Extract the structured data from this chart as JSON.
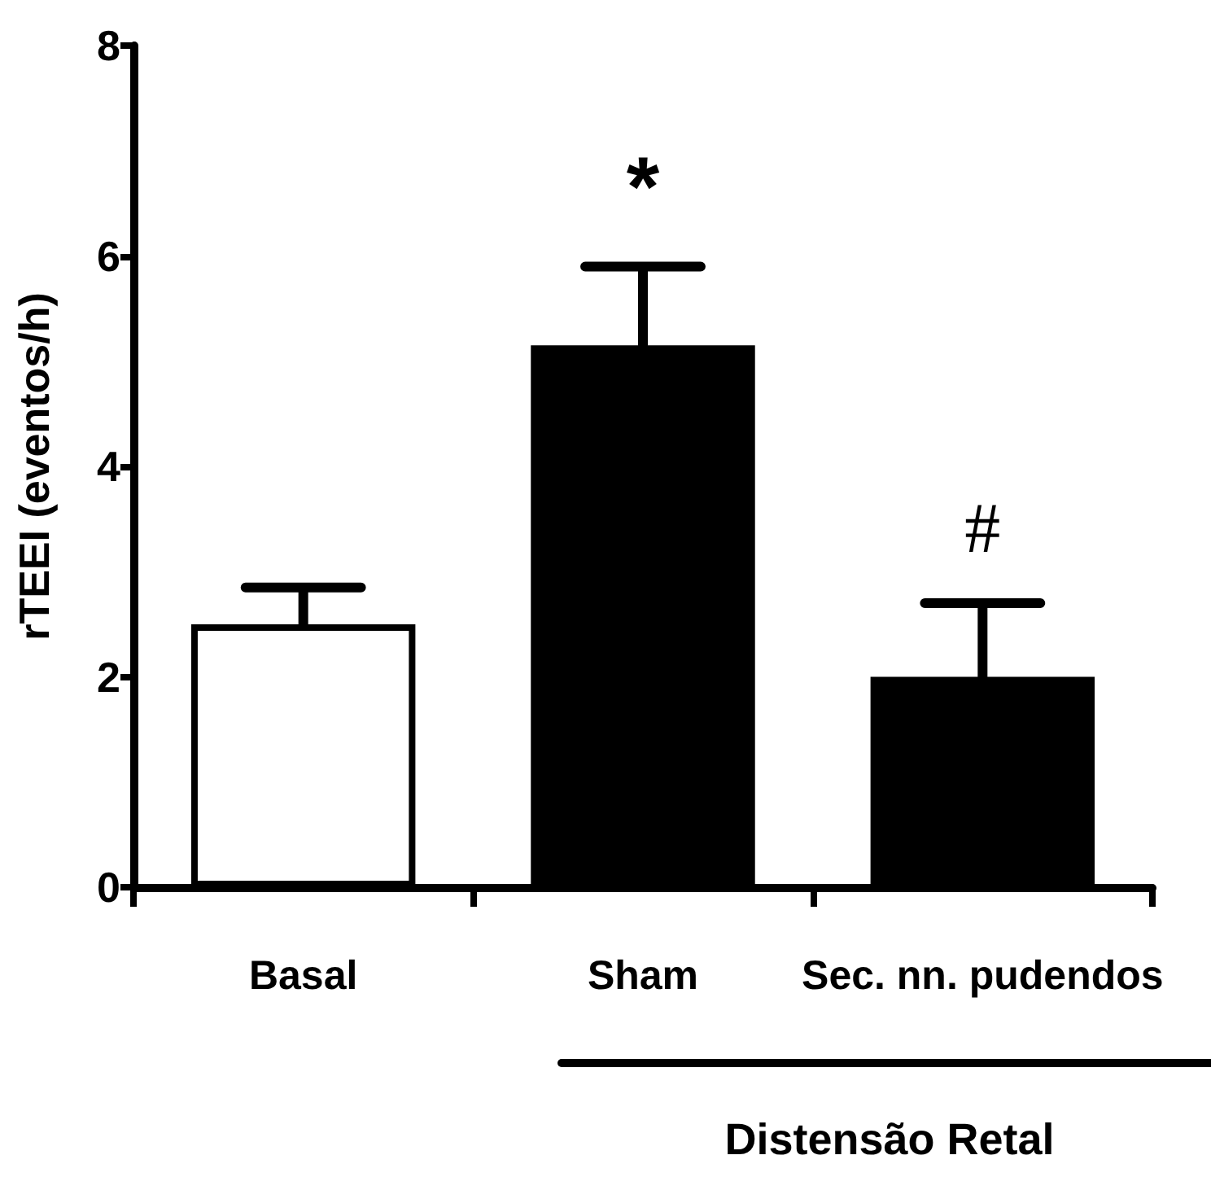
{
  "chart_data": {
    "type": "bar",
    "ylabel": "rTEEI (eventos/h)",
    "categories": [
      "Basal",
      "Sham",
      "Sec. nn. pudendos"
    ],
    "values": [
      2.5,
      5.15,
      2.0
    ],
    "colors": [
      "#ffffff",
      "#000000",
      "#000000"
    ],
    "errors": [
      [
        2.5,
        2.85
      ],
      [
        5.15,
        5.9
      ],
      [
        2.0,
        2.7
      ]
    ],
    "ylim": [
      0,
      8
    ],
    "yticks": [
      0,
      2,
      4,
      6,
      8
    ],
    "grid": false,
    "annotations": [
      {
        "text": "*",
        "x": "Sham",
        "y": 5.9
      },
      {
        "text": "#",
        "x": "Sec. nn. pudendos",
        "y": 2.7
      },
      "Distensão Retal"
    ]
  }
}
